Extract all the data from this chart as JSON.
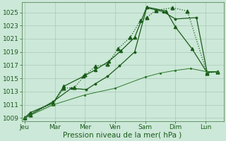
{
  "xlabel": "Pression niveau de la mer( hPa )",
  "background_color": "#cce8d8",
  "grid_color": "#aac8b8",
  "spine_color": "#558855",
  "ylim": [
    1008.5,
    1026.5
  ],
  "xlim": [
    -0.1,
    6.6
  ],
  "yticks": [
    1009,
    1011,
    1013,
    1015,
    1017,
    1019,
    1021,
    1023,
    1025
  ],
  "xtick_positions": [
    0,
    1,
    2,
    3,
    4,
    5,
    6
  ],
  "xtick_labels": [
    "Jeu",
    "Mar",
    "Mer",
    "Ven",
    "Sam",
    "Dim",
    "Lun"
  ],
  "line_color": "#1a5c1a",
  "fontsize_ticks": 6.5,
  "fontsize_xlabel": 7.5,
  "series": [
    {
      "x": [
        0,
        0.18,
        0.95,
        1.3,
        1.65,
        2.0,
        2.35,
        2.75,
        3.1,
        3.5,
        3.85,
        4.05,
        4.35,
        4.9,
        5.4,
        6.05,
        6.4
      ],
      "y": [
        1009,
        1009.5,
        1011.2,
        1013.5,
        1013.6,
        1015.5,
        1016.8,
        1017.2,
        1019.5,
        1021.2,
        1023.8,
        1024.2,
        1025.3,
        1025.7,
        1025.2,
        1015.8,
        1016.0
      ],
      "linestyle": ":",
      "linewidth": 0.9,
      "marker": "^",
      "markersize": 3.5,
      "color": "#1a5c1a"
    },
    {
      "x": [
        0,
        0.18,
        0.95,
        1.3,
        1.95,
        2.35,
        2.8,
        3.2,
        3.65,
        4.05,
        4.7,
        5.0,
        5.55,
        6.05,
        6.4
      ],
      "y": [
        1009,
        1009.8,
        1011.3,
        1013.8,
        1015.3,
        1016.3,
        1017.6,
        1019.2,
        1021.2,
        1025.8,
        1025.2,
        1022.8,
        1019.5,
        1015.9,
        1016.0
      ],
      "linestyle": "-",
      "linewidth": 0.9,
      "marker": "^",
      "markersize": 3.0,
      "color": "#1a5c1a"
    },
    {
      "x": [
        0,
        0.95,
        1.55,
        2.05,
        2.35,
        2.75,
        3.15,
        3.65,
        4.05,
        4.6,
        5.0,
        5.7,
        6.05,
        6.4
      ],
      "y": [
        1009,
        1011.5,
        1013.5,
        1013.3,
        1014.2,
        1015.3,
        1016.9,
        1019.0,
        1025.7,
        1025.1,
        1024.0,
        1024.2,
        1016.0,
        1016.0
      ],
      "linestyle": "-",
      "linewidth": 0.9,
      "marker": ".",
      "markersize": 3.5,
      "color": "#1a5c1a"
    },
    {
      "x": [
        0,
        0.95,
        2.0,
        3.0,
        4.0,
        4.5,
        5.0,
        5.5,
        6.05,
        6.4
      ],
      "y": [
        1009,
        1011.0,
        1012.5,
        1013.5,
        1015.2,
        1015.8,
        1016.2,
        1016.5,
        1016.0,
        1016.0
      ],
      "linestyle": "-",
      "linewidth": 0.7,
      "marker": ".",
      "markersize": 2.5,
      "color": "#2d7a2d"
    }
  ]
}
